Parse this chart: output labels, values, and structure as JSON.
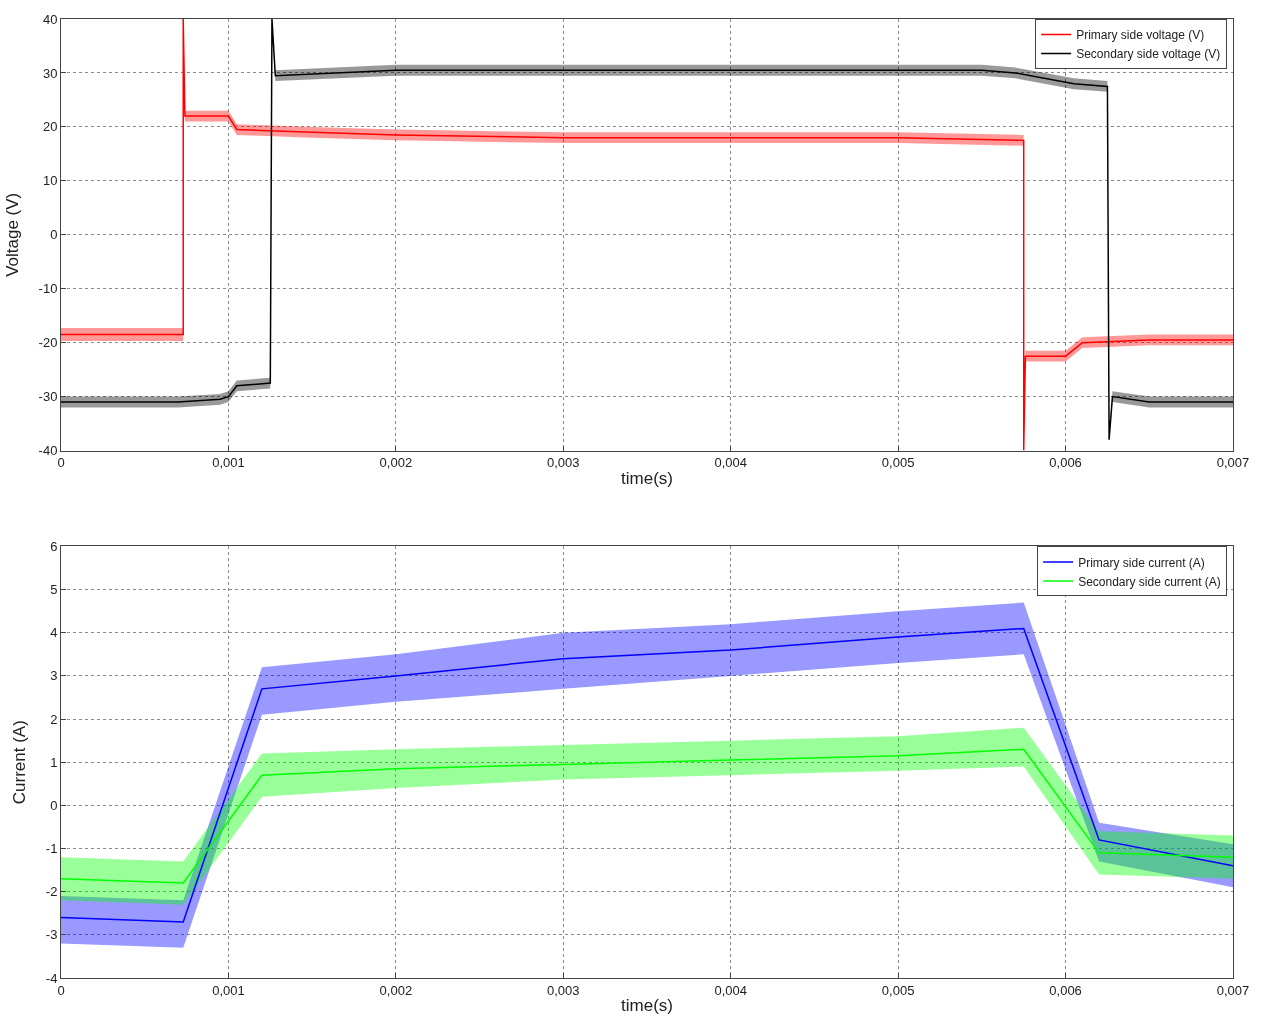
{
  "chart_data": [
    {
      "type": "line",
      "xlabel": "time(s)",
      "ylabel": "Voltage (V)",
      "xlim": [
        0,
        0.007
      ],
      "ylim": [
        -40,
        40
      ],
      "xticks": [
        0,
        {
          "value": 0.001,
          "label": "0,001"
        },
        {
          "value": 0.002,
          "label": "0,002"
        },
        {
          "value": 0.003,
          "label": "0,003"
        },
        {
          "value": 0.004,
          "label": "0,004"
        },
        {
          "value": 0.005,
          "label": "0,005"
        },
        {
          "value": 0.006,
          "label": "0,006"
        },
        {
          "value": 0.007,
          "label": "0,007"
        }
      ],
      "yticks": [
        -40,
        -30,
        -20,
        -10,
        0,
        10,
        20,
        30,
        40
      ],
      "grid": true,
      "legend": "top right",
      "series": [
        {
          "name": "Primary side voltage (V)",
          "color": "#ff0000",
          "x": [
            0,
            0.00073,
            0.00073,
            0.00074,
            0.001,
            0.00105,
            0.0015,
            0.002,
            0.003,
            0.004,
            0.005,
            0.00575,
            0.00575,
            0.00576,
            0.006,
            0.0061,
            0.0065,
            0.007
          ],
          "values": [
            -18.5,
            -18.5,
            40,
            22,
            22,
            19.5,
            19,
            18.5,
            18,
            18,
            18,
            17.5,
            -40,
            -22.5,
            -22.5,
            -20,
            -19.5,
            -19.5
          ],
          "lower": [
            -19.7,
            -19.7,
            40,
            21,
            21,
            18.5,
            18,
            17.5,
            17,
            17,
            17,
            16.5,
            -40,
            -23.5,
            -23.5,
            -21,
            -20.5,
            -20.5
          ],
          "upper": [
            -17.3,
            -17.3,
            40,
            23,
            23,
            20.5,
            20,
            19.5,
            19,
            19,
            19,
            18.5,
            -40,
            -21.5,
            -21.5,
            -19,
            -18.5,
            -18.5
          ]
        },
        {
          "name": "Secondary side voltage (V)",
          "color": "#000000",
          "x": [
            0,
            0.0007,
            0.00095,
            0.001,
            0.00105,
            0.00125,
            0.00126,
            0.00128,
            0.002,
            0.003,
            0.004,
            0.005,
            0.0055,
            0.0057,
            0.00605,
            0.00625,
            0.00626,
            0.00628,
            0.0065,
            0.007
          ],
          "values": [
            -31,
            -31,
            -30.5,
            -30,
            -28,
            -27.5,
            40,
            29.5,
            30.5,
            30.5,
            30.5,
            30.5,
            30.5,
            30,
            28,
            27.5,
            -38,
            -30,
            -31,
            -31
          ],
          "lower": [
            -32,
            -32,
            -31.5,
            -31,
            -29,
            -28.5,
            40,
            28.5,
            29.5,
            29.5,
            29.5,
            29.5,
            29.5,
            29,
            27,
            26.5,
            -38,
            -31,
            -32,
            -32
          ],
          "upper": [
            -30,
            -30,
            -29.5,
            -29,
            -27,
            -26.5,
            40,
            30.5,
            31.5,
            31.5,
            31.5,
            31.5,
            31.5,
            31,
            29,
            28.5,
            -38,
            -29,
            -30,
            -30
          ]
        }
      ]
    },
    {
      "type": "line",
      "xlabel": "time(s)",
      "ylabel": "Current (A)",
      "xlim": [
        0,
        0.007
      ],
      "ylim": [
        -4,
        6
      ],
      "xticks": [
        0,
        {
          "value": 0.001,
          "label": "0,001"
        },
        {
          "value": 0.002,
          "label": "0,002"
        },
        {
          "value": 0.003,
          "label": "0,003"
        },
        {
          "value": 0.004,
          "label": "0,004"
        },
        {
          "value": 0.005,
          "label": "0,005"
        },
        {
          "value": 0.006,
          "label": "0,006"
        },
        {
          "value": 0.007,
          "label": "0,007"
        }
      ],
      "yticks": [
        -4,
        -3,
        -2,
        -1,
        0,
        1,
        2,
        3,
        4,
        5,
        6
      ],
      "grid": true,
      "legend": "top right",
      "series": [
        {
          "name": "Primary side current (A)",
          "color": "#0000ff",
          "x": [
            0,
            0.00073,
            0.0012,
            0.002,
            0.003,
            0.004,
            0.005,
            0.00575,
            0.0062,
            0.007
          ],
          "values": [
            -2.6,
            -2.7,
            2.7,
            3.0,
            3.4,
            3.6,
            3.9,
            4.1,
            -0.8,
            -1.4
          ],
          "lower": [
            -3.2,
            -3.3,
            2.1,
            2.4,
            2.7,
            3.0,
            3.3,
            3.5,
            -1.3,
            -1.9
          ],
          "upper": [
            -2.1,
            -2.2,
            3.2,
            3.5,
            4.0,
            4.2,
            4.5,
            4.7,
            -0.4,
            -0.9
          ]
        },
        {
          "name": "Secondary side current (A)",
          "color": "#00ff00",
          "x": [
            0,
            0.00073,
            0.0012,
            0.002,
            0.003,
            0.004,
            0.005,
            0.00575,
            0.0062,
            0.007
          ],
          "values": [
            -1.7,
            -1.8,
            0.7,
            0.85,
            0.95,
            1.05,
            1.15,
            1.3,
            -1.1,
            -1.2
          ],
          "lower": [
            -2.2,
            -2.3,
            0.2,
            0.4,
            0.6,
            0.7,
            0.8,
            0.9,
            -1.6,
            -1.7
          ],
          "upper": [
            -1.2,
            -1.3,
            1.2,
            1.3,
            1.4,
            1.5,
            1.6,
            1.8,
            -0.6,
            -0.7
          ]
        }
      ]
    }
  ]
}
